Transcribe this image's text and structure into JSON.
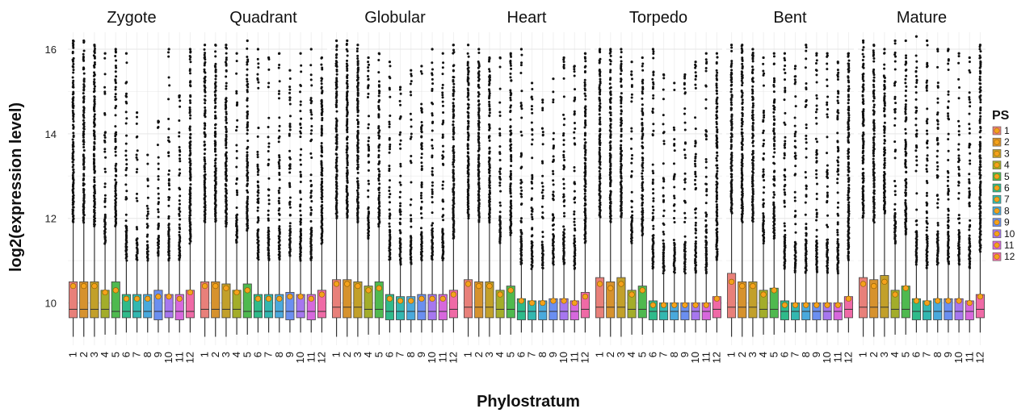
{
  "chart_data": {
    "type": "box",
    "title": "",
    "xlabel": "Phylostratum",
    "ylabel": "log2(expression level)",
    "ylim": [
      9.0,
      16.4
    ],
    "yticks": [
      10,
      12,
      14,
      16
    ],
    "grid": true,
    "legend": {
      "title": "PS",
      "placement": "right",
      "entries": [
        "1",
        "2",
        "3",
        "4",
        "5",
        "6",
        "7",
        "8",
        "9",
        "10",
        "11",
        "12"
      ]
    },
    "categories": [
      "1",
      "2",
      "3",
      "4",
      "5",
      "6",
      "7",
      "8",
      "9",
      "10",
      "11",
      "12"
    ],
    "colors": [
      "#e8807a",
      "#d6922e",
      "#c2a02a",
      "#a3ad2a",
      "#4fb94f",
      "#2fba8a",
      "#33b7b0",
      "#4aa9dc",
      "#6b8ff0",
      "#a777ef",
      "#d768dd",
      "#ef6aa6"
    ],
    "mean_marker_color": "#f5a21b",
    "panels": [
      {
        "stage": "Zygote",
        "q1": [
          9.65,
          9.65,
          9.65,
          9.65,
          9.65,
          9.65,
          9.65,
          9.65,
          9.6,
          9.65,
          9.6,
          9.65
        ],
        "median": [
          9.85,
          9.85,
          9.85,
          9.85,
          9.8,
          9.8,
          9.8,
          9.8,
          9.8,
          9.8,
          9.8,
          9.8
        ],
        "q3": [
          10.5,
          10.5,
          10.5,
          10.3,
          10.5,
          10.2,
          10.2,
          10.2,
          10.3,
          10.2,
          10.2,
          10.3
        ],
        "mean": [
          10.4,
          10.4,
          10.4,
          10.25,
          10.3,
          10.1,
          10.1,
          10.1,
          10.15,
          10.15,
          10.1,
          10.25
        ],
        "whisker_low": [
          9.2,
          9.2,
          9.2,
          9.25,
          9.25,
          9.3,
          9.3,
          9.3,
          9.3,
          9.3,
          9.3,
          9.3
        ],
        "whisker_high": [
          11.9,
          11.9,
          11.8,
          11.4,
          11.8,
          11.0,
          11.0,
          11.0,
          11.1,
          11.0,
          11.0,
          11.4
        ],
        "outlier_max": [
          16.2,
          16.2,
          16.1,
          15.9,
          16.0,
          15.9,
          14.5,
          13.5,
          14.3,
          16.0,
          14.9,
          16.0
        ]
      },
      {
        "stage": "Quadrant",
        "q1": [
          9.65,
          9.65,
          9.65,
          9.65,
          9.65,
          9.65,
          9.65,
          9.65,
          9.6,
          9.65,
          9.6,
          9.65
        ],
        "median": [
          9.85,
          9.85,
          9.85,
          9.85,
          9.8,
          9.8,
          9.8,
          9.8,
          9.8,
          9.8,
          9.8,
          9.8
        ],
        "q3": [
          10.5,
          10.5,
          10.45,
          10.3,
          10.45,
          10.2,
          10.2,
          10.2,
          10.25,
          10.2,
          10.2,
          10.3
        ],
        "mean": [
          10.4,
          10.4,
          10.35,
          10.25,
          10.3,
          10.1,
          10.1,
          10.1,
          10.15,
          10.15,
          10.1,
          10.2
        ],
        "whisker_low": [
          9.2,
          9.2,
          9.2,
          9.25,
          9.25,
          9.3,
          9.3,
          9.3,
          9.3,
          9.3,
          9.3,
          9.3
        ],
        "whisker_high": [
          11.9,
          11.9,
          11.8,
          11.4,
          11.7,
          11.0,
          11.0,
          11.0,
          11.1,
          11.0,
          11.0,
          11.4
        ],
        "outlier_max": [
          16.1,
          16.1,
          16.1,
          15.9,
          16.2,
          16.0,
          15.8,
          15.9,
          15.5,
          15.9,
          16.0,
          15.8
        ]
      },
      {
        "stage": "Globular",
        "q1": [
          9.65,
          9.65,
          9.65,
          9.65,
          9.65,
          9.6,
          9.6,
          9.6,
          9.6,
          9.6,
          9.6,
          9.65
        ],
        "median": [
          9.9,
          9.9,
          9.9,
          9.85,
          9.85,
          9.8,
          9.8,
          9.8,
          9.8,
          9.8,
          9.8,
          9.85
        ],
        "q3": [
          10.55,
          10.55,
          10.5,
          10.4,
          10.5,
          10.2,
          10.15,
          10.15,
          10.2,
          10.2,
          10.2,
          10.3
        ],
        "mean": [
          10.45,
          10.45,
          10.4,
          10.3,
          10.35,
          10.1,
          10.05,
          10.05,
          10.1,
          10.1,
          10.1,
          10.2
        ],
        "whisker_low": [
          9.2,
          9.2,
          9.2,
          9.25,
          9.25,
          9.3,
          9.3,
          9.3,
          9.3,
          9.3,
          9.3,
          9.3
        ],
        "whisker_high": [
          12.0,
          12.0,
          11.9,
          11.5,
          11.8,
          11.0,
          10.9,
          10.9,
          11.0,
          11.0,
          11.0,
          11.5
        ],
        "outlier_max": [
          16.2,
          16.2,
          16.1,
          15.8,
          15.9,
          15.7,
          15.1,
          15.5,
          15.6,
          16.0,
          15.9,
          16.1
        ]
      },
      {
        "stage": "Heart",
        "q1": [
          9.65,
          9.65,
          9.65,
          9.65,
          9.65,
          9.6,
          9.6,
          9.6,
          9.6,
          9.6,
          9.6,
          9.65
        ],
        "median": [
          9.9,
          9.9,
          9.9,
          9.85,
          9.85,
          9.8,
          9.8,
          9.8,
          9.8,
          9.8,
          9.8,
          9.85
        ],
        "q3": [
          10.55,
          10.5,
          10.5,
          10.3,
          10.4,
          10.1,
          10.05,
          10.05,
          10.1,
          10.1,
          10.05,
          10.25
        ],
        "mean": [
          10.45,
          10.4,
          10.4,
          10.2,
          10.3,
          10.05,
          10.0,
          10.0,
          10.05,
          10.05,
          10.0,
          10.15
        ],
        "whisker_low": [
          9.2,
          9.2,
          9.2,
          9.25,
          9.25,
          9.3,
          9.3,
          9.3,
          9.3,
          9.3,
          9.3,
          9.3
        ],
        "whisker_high": [
          12.0,
          11.9,
          11.9,
          11.4,
          11.6,
          10.9,
          10.8,
          10.8,
          10.9,
          10.9,
          10.8,
          11.4
        ],
        "outlier_max": [
          16.1,
          16.0,
          15.8,
          15.8,
          15.9,
          16.0,
          15.2,
          14.8,
          15.3,
          15.8,
          15.6,
          15.9
        ]
      },
      {
        "stage": "Torpedo",
        "q1": [
          9.65,
          9.65,
          9.65,
          9.65,
          9.65,
          9.6,
          9.6,
          9.6,
          9.6,
          9.6,
          9.6,
          9.65
        ],
        "median": [
          9.9,
          9.9,
          9.9,
          9.85,
          9.85,
          9.8,
          9.8,
          9.8,
          9.8,
          9.8,
          9.8,
          9.85
        ],
        "q3": [
          10.6,
          10.5,
          10.6,
          10.3,
          10.4,
          10.05,
          10.0,
          10.0,
          10.0,
          10.0,
          10.0,
          10.15
        ],
        "mean": [
          10.45,
          10.35,
          10.45,
          10.2,
          10.3,
          9.95,
          9.95,
          9.95,
          9.95,
          9.95,
          9.95,
          10.1
        ],
        "whisker_low": [
          9.2,
          9.2,
          9.2,
          9.25,
          9.25,
          9.3,
          9.3,
          9.3,
          9.3,
          9.3,
          9.3,
          9.3
        ],
        "whisker_high": [
          12.0,
          11.9,
          12.0,
          11.4,
          11.6,
          10.8,
          10.7,
          10.7,
          10.7,
          10.7,
          10.7,
          11.0
        ],
        "outlier_max": [
          16.0,
          16.0,
          16.0,
          15.7,
          15.8,
          16.0,
          15.4,
          15.2,
          15.4,
          15.7,
          15.9,
          15.9
        ]
      },
      {
        "stage": "Bent",
        "q1": [
          9.65,
          9.65,
          9.65,
          9.65,
          9.65,
          9.6,
          9.6,
          9.6,
          9.6,
          9.6,
          9.6,
          9.65
        ],
        "median": [
          9.9,
          9.9,
          9.9,
          9.85,
          9.85,
          9.8,
          9.8,
          9.8,
          9.8,
          9.8,
          9.8,
          9.85
        ],
        "q3": [
          10.7,
          10.5,
          10.5,
          10.3,
          10.35,
          10.05,
          10.0,
          10.0,
          10.0,
          10.0,
          10.0,
          10.15
        ],
        "mean": [
          10.5,
          10.4,
          10.4,
          10.2,
          10.3,
          9.95,
          9.95,
          9.95,
          9.95,
          9.95,
          9.95,
          10.1
        ],
        "whisker_low": [
          9.2,
          9.2,
          9.2,
          9.25,
          9.25,
          9.3,
          9.3,
          9.3,
          9.3,
          9.3,
          9.3,
          9.3
        ],
        "whisker_high": [
          12.1,
          11.9,
          11.9,
          11.4,
          11.5,
          10.8,
          10.7,
          10.7,
          10.7,
          10.7,
          10.7,
          11.0
        ],
        "outlier_max": [
          16.1,
          16.1,
          16.0,
          15.8,
          15.9,
          15.9,
          15.6,
          16.1,
          15.9,
          15.9,
          15.7,
          15.9
        ]
      },
      {
        "stage": "Mature",
        "q1": [
          9.65,
          9.65,
          9.65,
          9.65,
          9.65,
          9.6,
          9.6,
          9.6,
          9.6,
          9.6,
          9.6,
          9.65
        ],
        "median": [
          9.9,
          9.9,
          9.9,
          9.85,
          9.85,
          9.8,
          9.8,
          9.8,
          9.8,
          9.8,
          9.8,
          9.85
        ],
        "q3": [
          10.6,
          10.55,
          10.65,
          10.3,
          10.4,
          10.1,
          10.05,
          10.1,
          10.1,
          10.1,
          10.05,
          10.2
        ],
        "mean": [
          10.45,
          10.4,
          10.5,
          10.2,
          10.35,
          10.05,
          10.0,
          10.05,
          10.05,
          10.05,
          10.0,
          10.15
        ],
        "whisker_low": [
          9.2,
          9.2,
          9.2,
          9.25,
          9.25,
          9.3,
          9.3,
          9.3,
          9.3,
          9.3,
          9.3,
          9.3
        ],
        "whisker_high": [
          12.0,
          11.9,
          12.1,
          11.4,
          11.6,
          10.9,
          10.8,
          10.9,
          10.9,
          10.9,
          10.8,
          11.2
        ],
        "outlier_max": [
          16.2,
          16.1,
          16.0,
          16.2,
          16.2,
          16.3,
          16.2,
          16.0,
          16.0,
          15.9,
          15.8,
          16.1
        ]
      }
    ]
  }
}
